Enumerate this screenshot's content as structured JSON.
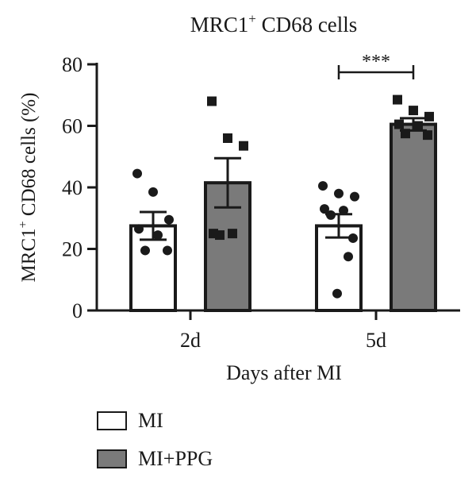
{
  "chart_data": {
    "type": "bar",
    "title": "MRC1",
    "title_sup": "+",
    "title_rest": " CD68 cells",
    "ylabel": "MRC1",
    "ylabel_sup": "+",
    "ylabel_rest": " CD68 cells (%)",
    "xlabel": "Days after MI",
    "ylim": [
      0,
      80
    ],
    "yticks": [
      "0",
      "20",
      "40",
      "60",
      "80"
    ],
    "categories": [
      "2d",
      "5d"
    ],
    "series": [
      {
        "name": "MI",
        "color": "#ffffff",
        "marker": "circle",
        "values": [
          27.5,
          27.5
        ],
        "sem": [
          4.5,
          3.8
        ],
        "points": [
          [
            44.5,
            38.5,
            29.5,
            26.5,
            24.5,
            19.5,
            19.5
          ],
          [
            40.5,
            38.0,
            37.0,
            33.0,
            32.5,
            31.0,
            23.5,
            17.5,
            5.5
          ]
        ]
      },
      {
        "name": "MI+PPG",
        "color": "#7a7a7a",
        "marker": "square",
        "values": [
          41.5,
          60.5
        ],
        "sem": [
          8.0,
          2.0
        ],
        "points": [
          [
            68.0,
            56.0,
            53.5,
            25.0,
            25.0,
            24.5
          ],
          [
            68.5,
            65.0,
            63.0,
            60.5,
            60.0,
            57.5,
            57.0
          ]
        ]
      }
    ],
    "significance": [
      {
        "category": "5d",
        "label": "***"
      }
    ],
    "legend_position": "bottom-left"
  }
}
